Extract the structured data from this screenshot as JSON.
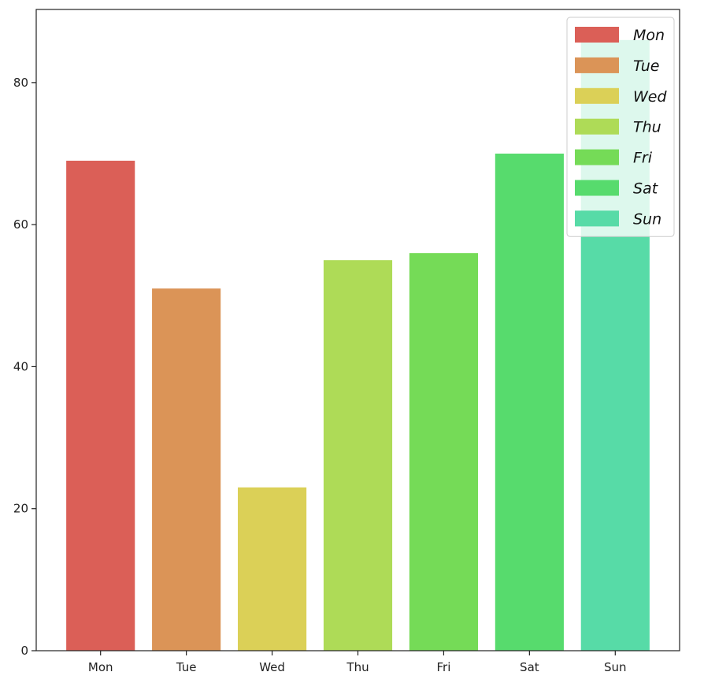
{
  "chart_data": {
    "type": "bar",
    "title": "",
    "xlabel": "",
    "ylabel": "",
    "categories": [
      "Mon",
      "Tue",
      "Wed",
      "Thu",
      "Fri",
      "Sat",
      "Sun"
    ],
    "values": [
      69,
      51,
      23,
      55,
      56,
      70,
      86
    ],
    "colors": [
      "#db5f57",
      "#db9457",
      "#dbd057",
      "#aedb57",
      "#75db57",
      "#57db6d",
      "#57dba7"
    ],
    "ylim": [
      0,
      90.3
    ],
    "yticks": [
      0,
      20,
      40,
      60,
      80
    ],
    "grid": false,
    "legend": {
      "placement": "top-right",
      "entries": [
        "Mon",
        "Tue",
        "Wed",
        "Thu",
        "Fri",
        "Sat",
        "Sun"
      ]
    }
  }
}
